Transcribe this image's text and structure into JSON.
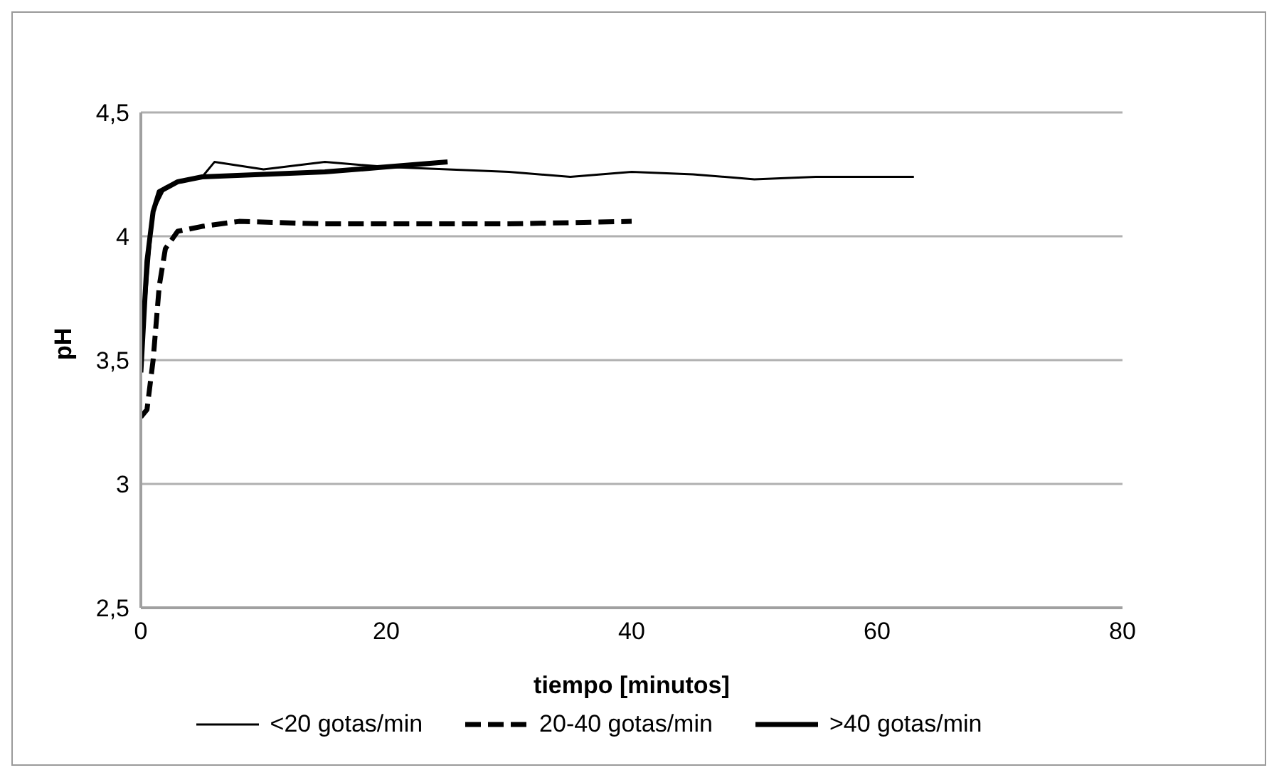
{
  "chart_data": {
    "type": "line",
    "xlabel": "tiempo [minutos]",
    "ylabel": "pH",
    "xlim": [
      0,
      80
    ],
    "xticks": [
      0,
      20,
      40,
      60,
      80
    ],
    "ylim": [
      2.5,
      4.5
    ],
    "yticks": [
      {
        "value": 2.5,
        "label": "2,5"
      },
      3,
      {
        "value": 3.5,
        "label": "3,5"
      },
      4,
      {
        "value": 4.5,
        "label": "4,5"
      }
    ],
    "grid": "y",
    "legend": "bottom",
    "marker": "none",
    "series": [
      {
        "name": "<20 gotas/min",
        "color": "#000000",
        "line_style": "solid",
        "x": [
          0,
          1,
          2,
          4,
          5,
          6,
          10,
          15,
          20,
          25,
          30,
          35,
          40,
          45,
          50,
          55,
          63
        ],
        "values": [
          3.5,
          4.1,
          4.2,
          4.23,
          4.24,
          4.3,
          4.27,
          4.3,
          4.28,
          4.27,
          4.26,
          4.24,
          4.26,
          4.25,
          4.23,
          4.24,
          4.24
        ]
      },
      {
        "name": "20-40 gotas/min",
        "color": "#000000",
        "line_style": "dashed",
        "x": [
          0,
          0.5,
          1,
          1.5,
          2,
          3,
          5,
          8,
          15,
          30,
          40
        ],
        "values": [
          3.27,
          3.3,
          3.5,
          3.8,
          3.95,
          4.02,
          4.04,
          4.06,
          4.05,
          4.05,
          4.06
        ]
      },
      {
        "name": ">40 gotas/min",
        "color": "#000000",
        "line_style": "solid",
        "x": [
          0,
          0.5,
          1,
          1.5,
          3,
          5,
          10,
          15,
          20,
          25
        ],
        "values": [
          3.45,
          3.9,
          4.1,
          4.18,
          4.22,
          4.24,
          4.25,
          4.26,
          4.28,
          4.3
        ]
      }
    ]
  }
}
